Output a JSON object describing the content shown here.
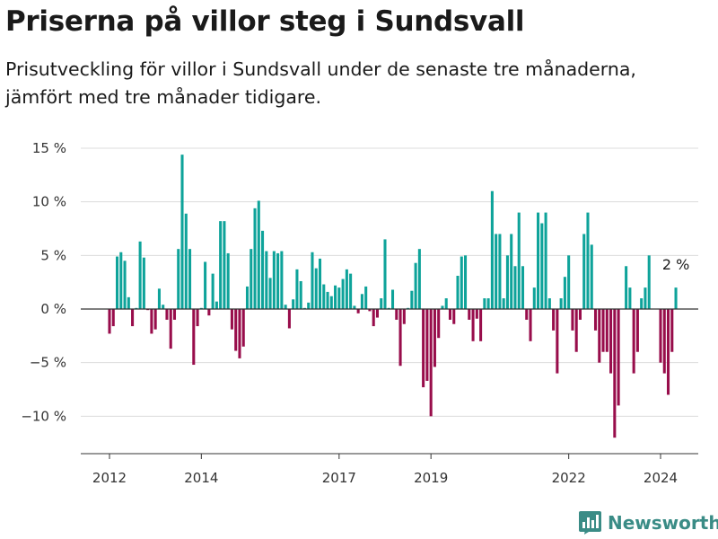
{
  "header": {
    "title": "Priserna på villor steg i Sundsvall",
    "subtitle": "Prisutveckling för villor i Sundsvall under de senaste tre månaderna, jämfört med tre månader tidigare."
  },
  "brand": {
    "name": "Newsworthy",
    "icon": "bar-chart-logo-icon"
  },
  "colors": {
    "positive": "#0ea39a",
    "negative": "#980d4b",
    "grid": "#dcdcdc",
    "axis": "#333333"
  },
  "chart_data": {
    "type": "bar",
    "x_start": "2012-01",
    "x_interval": "month",
    "values": [
      -2.3,
      -1.6,
      4.9,
      5.3,
      4.5,
      1.1,
      -1.6,
      0.1,
      6.3,
      4.8,
      -0.1,
      -2.3,
      -1.9,
      1.9,
      0.4,
      -1.0,
      -3.7,
      -1.0,
      5.6,
      14.4,
      8.9,
      5.6,
      -5.2,
      -1.6,
      0.1,
      4.4,
      -0.6,
      3.3,
      0.7,
      8.2,
      8.2,
      5.2,
      -1.9,
      -3.9,
      -4.6,
      -3.5,
      2.1,
      5.6,
      9.4,
      10.1,
      7.3,
      5.4,
      2.9,
      5.4,
      5.2,
      5.4,
      0.4,
      -1.8,
      0.9,
      3.7,
      2.6,
      0.1,
      0.6,
      5.3,
      3.8,
      4.7,
      2.3,
      1.6,
      1.2,
      2.2,
      2.0,
      2.8,
      3.7,
      3.3,
      0.3,
      -0.4,
      1.4,
      2.1,
      -0.2,
      -1.6,
      -0.8,
      1.0,
      6.5,
      0.1,
      1.8,
      -1.0,
      -5.3,
      -1.4,
      0.1,
      1.7,
      4.3,
      5.6,
      -7.3,
      -6.7,
      -10.0,
      -5.4,
      -2.7,
      0.3,
      1.0,
      -1.0,
      -1.4,
      3.1,
      4.9,
      5.0,
      -1.0,
      -3.0,
      -0.9,
      -3.0,
      1.0,
      1.0,
      11.0,
      7.0,
      7.0,
      1.0,
      5.0,
      7.0,
      4.0,
      9.0,
      4.0,
      -1.0,
      -3.0,
      2.0,
      9.0,
      8.0,
      9.0,
      1.0,
      -2.0,
      -6.0,
      1.0,
      3.0,
      5.0,
      -2.0,
      -4.0,
      -1.0,
      7.0,
      9.0,
      6.0,
      -2.0,
      -5.0,
      -4.0,
      -4.0,
      -6.0,
      -12.0,
      -9.0,
      0.0,
      4.0,
      2.0,
      -6.0,
      -4.0,
      1.0,
      2.0,
      5.0,
      0.0,
      0.0,
      -5.0,
      -6.0,
      -8.0,
      -4.0,
      2.0
    ],
    "highlight_label": "2 %",
    "y_ticks": [
      15,
      10,
      5,
      0,
      -5,
      -10
    ],
    "y_tick_labels": [
      "15 %",
      "10 %",
      "5 %",
      "0 %",
      "−5 %",
      "−10 %"
    ],
    "ylim": [
      -13.7,
      15
    ],
    "x_ticks": [
      2012,
      2014,
      2017,
      2019,
      2022,
      2024
    ],
    "x_tick_labels": [
      "2012",
      "2014",
      "2017",
      "2019",
      "2022",
      "2024"
    ],
    "grid": true,
    "title": "",
    "xlabel": "",
    "ylabel": ""
  }
}
